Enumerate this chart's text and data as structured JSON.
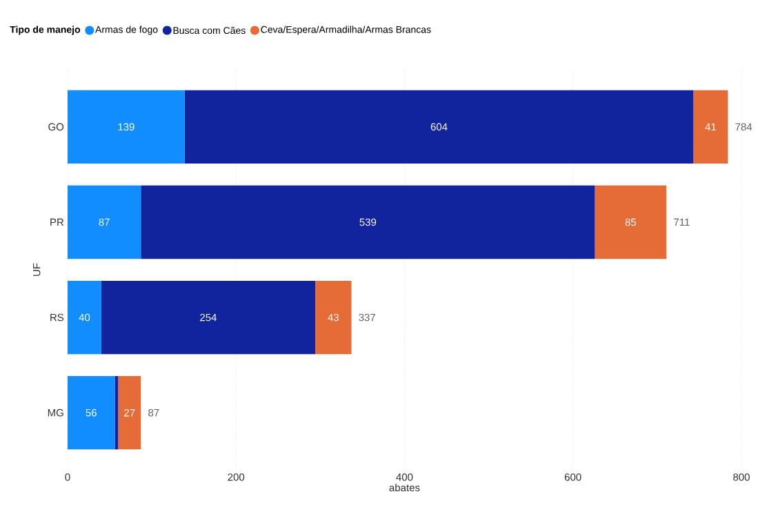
{
  "chart_data": {
    "type": "bar",
    "orientation": "horizontal",
    "stacked": true,
    "xlabel": "abates",
    "ylabel": "UF",
    "legend_title": "Tipo de manejo",
    "legend": "top left",
    "grid": "x",
    "categories": [
      "GO",
      "PR",
      "RS",
      "MG"
    ],
    "series": [
      {
        "name": "Armas de fogo",
        "color": "#118dff",
        "values": [
          139,
          87,
          40,
          56
        ],
        "value_labels": [
          "139",
          "87",
          "40",
          "56"
        ]
      },
      {
        "name": "Busca com Cães",
        "color": "#12239e",
        "values": [
          604,
          539,
          254,
          4
        ],
        "value_labels": [
          "604",
          "539",
          "254",
          null
        ]
      },
      {
        "name": "Ceva/Espera/Armadilha/Armas Brancas",
        "color": "#e66c37",
        "values": [
          41,
          85,
          43,
          27
        ],
        "value_labels": [
          "41",
          "85",
          "43",
          "27"
        ]
      }
    ],
    "totals": [
      "784",
      "711",
      "337",
      "87"
    ],
    "xlim": [
      0,
      800
    ],
    "xticks": [
      0,
      200,
      400,
      600,
      800
    ]
  }
}
